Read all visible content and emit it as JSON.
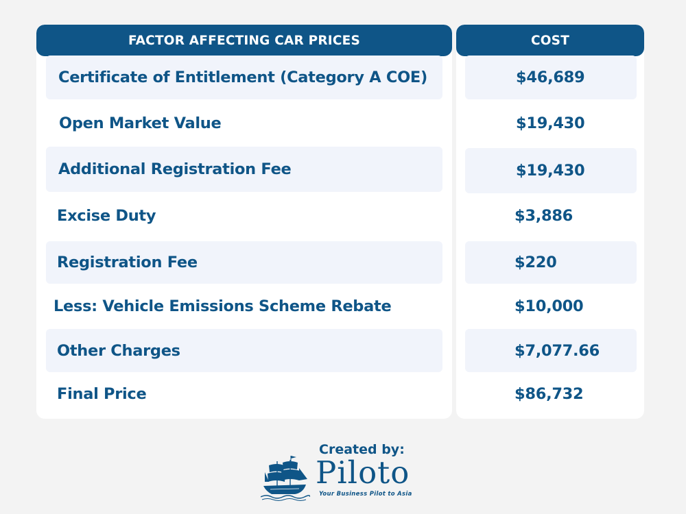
{
  "table": {
    "header_factor": "FACTOR AFFECTING CAR PRICES",
    "header_cost": "COST",
    "rows": [
      {
        "factor": "Certificate of Entitlement (Category A COE)",
        "cost": "$46,689"
      },
      {
        "factor": "Open Market Value",
        "cost": "$19,430"
      },
      {
        "factor": "Additional Registration Fee",
        "cost": "$19,430"
      },
      {
        "factor": "Excise Duty",
        "cost": "$3,886"
      },
      {
        "factor": "Registration Fee",
        "cost": "$220"
      },
      {
        "factor": "Less: Vehicle Emissions Scheme Rebate",
        "cost": "$10,000"
      },
      {
        "factor": "Other Charges",
        "cost": "$7,077.66"
      },
      {
        "factor": "Final Price",
        "cost": "$86,732"
      }
    ]
  },
  "credit": {
    "label": "Created by:",
    "brand": "Piloto",
    "tagline": "Your Business Pilot to Asia",
    "logo_icon": "ship-icon"
  },
  "colors": {
    "accent": "#0f5587",
    "background": "#f3f3f3",
    "row_shade": "#f1f4fb",
    "panel": "#ffffff"
  }
}
